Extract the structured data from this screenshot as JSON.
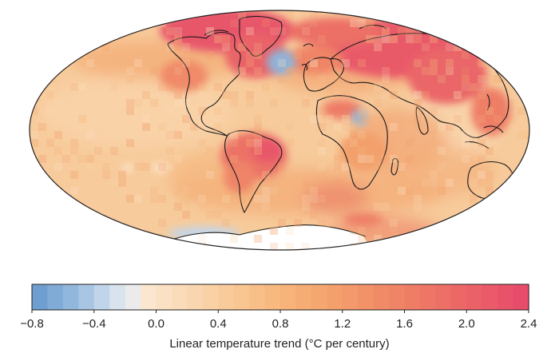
{
  "map": {
    "projection": "Mollweide",
    "colors": {
      "ocean_base": "#f6c896",
      "warm": "#f2a773",
      "strong_warm": "#e8596a",
      "cool": "#8fb4d9",
      "ice": "#ffffff",
      "coastline": "#1a1a1a"
    }
  },
  "colorbar": {
    "title": "Linear temperature trend (°C per century)",
    "min": -0.8,
    "max": 2.4,
    "ticks": [
      "−0.8",
      "−0.4",
      "0.0",
      "0.4",
      "0.8",
      "1.2",
      "1.6",
      "2.0",
      "2.4"
    ],
    "tick_values": [
      -0.8,
      -0.4,
      0.0,
      0.4,
      0.8,
      1.2,
      1.6,
      2.0,
      2.4
    ],
    "swatches": [
      "#6e9fd0",
      "#7fabd6",
      "#92b7dc",
      "#a8c6e3",
      "#c0d5ea",
      "#d8e3ee",
      "#ebebeb",
      "#fbe6cf",
      "#fbe1c4",
      "#fbdcba",
      "#fad6b0",
      "#fad0a5",
      "#f9cb9b",
      "#f9c591",
      "#f8bf88",
      "#f7b97f",
      "#f7b37a",
      "#f6ad75",
      "#f5a770",
      "#f4a06d",
      "#f3996b",
      "#f29268",
      "#f18b67",
      "#f08466",
      "#ef7d66",
      "#ee7666",
      "#ed6f66",
      "#ec6867",
      "#eb6168",
      "#ea5a69",
      "#e9536a",
      "#e84c6b"
    ]
  }
}
